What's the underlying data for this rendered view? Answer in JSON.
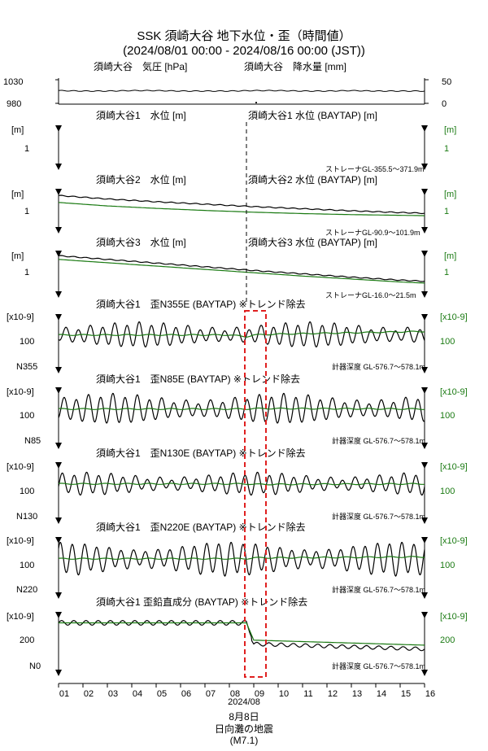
{
  "title": "SSK 須崎大谷 地下水位・歪（時間値）",
  "subtitle": "(2024/08/01 00:00 - 2024/08/16 00:00 (JST))",
  "xaxis": {
    "ticks": [
      "01",
      "02",
      "03",
      "04",
      "05",
      "06",
      "07",
      "08",
      "09",
      "10",
      "11",
      "12",
      "13",
      "14",
      "15",
      "16"
    ],
    "month_label": "2024/08"
  },
  "event": {
    "date_label": "8月8日",
    "name": "日向灘の地震",
    "magnitude": "(M7.1)",
    "day": 8.7
  },
  "colors": {
    "black": "#000000",
    "green": "#1a7a12",
    "red": "#e02020"
  },
  "chart_data": [
    {
      "id": "pressure_rain",
      "type": "line",
      "left_title": "須崎大谷　気圧 [hPa]",
      "right_title": "須崎大谷　降水量 [mm]",
      "left_ticks": [
        "1030",
        "980"
      ],
      "right_ticks": [
        "50",
        "0"
      ],
      "ylim_left": [
        980,
        1030
      ],
      "ylim_right": [
        0,
        50
      ],
      "pressure_hPa": {
        "x": [
          1,
          2,
          3,
          4,
          5,
          6,
          7,
          8,
          9,
          10,
          11,
          12,
          13,
          14,
          15,
          16
        ],
        "y": [
          1007,
          1006,
          1006,
          1007,
          1007,
          1006,
          1006,
          1006,
          1007,
          1007,
          1006,
          1006,
          1007,
          1006,
          1006,
          1006
        ]
      },
      "rain_mm": {
        "x": [
          9.1
        ],
        "y": [
          3
        ]
      }
    },
    {
      "id": "wl1",
      "type": "line",
      "left_title": "須崎大谷1　水位 [m]",
      "right_title": "須崎大谷1 水位 (BAYTAP) [m]",
      "left_unit": "[m]",
      "right_unit": "[m]",
      "left_tick": "1",
      "right_tick": "1",
      "note": "ストレーナGL-355.5～371.9m",
      "black": {
        "x": [],
        "y": []
      },
      "green": {
        "x": [],
        "y": []
      }
    },
    {
      "id": "wl2",
      "type": "line",
      "left_title": "須崎大谷2　水位 [m]",
      "right_title": "須崎大谷2 水位 (BAYTAP) [m]",
      "left_unit": "[m]",
      "right_unit": "[m]",
      "left_tick": "1",
      "right_tick": "1",
      "note": "ストレーナGL-90.9～101.9m",
      "ylim": [
        0.5,
        1.6
      ],
      "black": {
        "x": [
          1,
          3,
          5,
          7,
          9,
          11,
          13,
          15,
          16
        ],
        "y": [
          1.5,
          1.4,
          1.32,
          1.25,
          1.18,
          1.12,
          1.06,
          1.01,
          0.99
        ]
      },
      "green": {
        "x": [
          1,
          3,
          5,
          7,
          9,
          11,
          13,
          15,
          16
        ],
        "y": [
          1.3,
          1.2,
          1.13,
          1.07,
          1.02,
          0.98,
          0.95,
          0.93,
          0.92
        ]
      }
    },
    {
      "id": "wl3",
      "type": "line",
      "left_title": "須崎大谷3　水位 [m]",
      "right_title": "須崎大谷3 水位 (BAYTAP) [m]",
      "left_unit": "[m]",
      "right_unit": "[m]",
      "left_tick": "1",
      "right_tick": "1",
      "note": "ストレーナGL-16.0～21.5m",
      "ylim": [
        0.5,
        1.6
      ],
      "black": {
        "x": [
          1,
          3,
          5,
          7,
          9,
          11,
          13,
          15,
          16
        ],
        "y": [
          1.55,
          1.45,
          1.35,
          1.25,
          1.15,
          1.06,
          0.97,
          0.89,
          0.86
        ]
      },
      "green": {
        "x": [
          1,
          3,
          5,
          7,
          9,
          11,
          13,
          15,
          16
        ],
        "y": [
          1.45,
          1.36,
          1.27,
          1.18,
          1.09,
          1.0,
          0.92,
          0.84,
          0.81
        ]
      }
    },
    {
      "id": "s355",
      "type": "line",
      "title": "須崎大谷1　歪N355E (BAYTAP) ※トレンド除去",
      "left_unit": "[x10-9]",
      "right_unit": "[x10-9]",
      "left_tick": "100",
      "right_tick": "100",
      "component": "N355",
      "note": "計器深度 GL-576.7～578.1m",
      "ylim": [
        -300,
        300
      ],
      "black_amplitude": 130,
      "black_period_days": 0.5,
      "green": {
        "x": [
          1,
          8,
          8.7,
          9,
          10,
          16
        ],
        "y": [
          100,
          100,
          80,
          100,
          110,
          140
        ]
      }
    },
    {
      "id": "s85",
      "type": "line",
      "title": "須崎大谷1　歪N85E (BAYTAP) ※トレンド除去",
      "left_unit": "[x10-9]",
      "right_unit": "[x10-9]",
      "left_tick": "100",
      "right_tick": "100",
      "component": "N85",
      "note": "計器深度 GL-576.7～578.1m",
      "ylim": [
        -300,
        300
      ],
      "black_amplitude": 150,
      "black_period_days": 0.5,
      "green": {
        "x": [
          1,
          8,
          8.7,
          9,
          10,
          16
        ],
        "y": [
          100,
          100,
          100,
          105,
          105,
          100
        ]
      }
    },
    {
      "id": "s130",
      "type": "line",
      "title": "須崎大谷1　歪N130E (BAYTAP) ※トレンド除去",
      "left_unit": "[x10-9]",
      "right_unit": "[x10-9]",
      "left_tick": "100",
      "right_tick": "100",
      "component": "N130",
      "note": "計器深度 GL-576.7～578.1m",
      "ylim": [
        -300,
        300
      ],
      "black_amplitude": 110,
      "black_period_days": 0.5,
      "green": {
        "x": [
          1,
          8,
          8.7,
          9,
          10,
          16
        ],
        "y": [
          100,
          100,
          100,
          95,
          95,
          100
        ]
      }
    },
    {
      "id": "s220",
      "type": "line",
      "title": "須崎大谷1　歪N220E (BAYTAP) ※トレンド除去",
      "left_unit": "[x10-9]",
      "right_unit": "[x10-9]",
      "left_tick": "100",
      "right_tick": "100",
      "component": "N220",
      "note": "計器深度 GL-576.7～578.1m",
      "ylim": [
        -300,
        300
      ],
      "black_amplitude": 170,
      "black_period_days": 0.5,
      "green": {
        "x": [
          1,
          8,
          8.7,
          9,
          10,
          16
        ],
        "y": [
          100,
          100,
          100,
          110,
          110,
          120
        ]
      }
    },
    {
      "id": "sv",
      "type": "line",
      "title": "須崎大谷1 歪鉛直成分 (BAYTAP) ※トレンド除去",
      "left_unit": "[x10-9]",
      "right_unit": "[x10-9]",
      "left_tick": "200",
      "right_tick": "200",
      "component": "N0",
      "note": "計器深度 GL-576.7～578.1m",
      "ylim": [
        -1000,
        500
      ],
      "black_amplitude_before": 60,
      "black_amplitude_after": 45,
      "green": {
        "x": [
          1,
          8.7,
          9.0,
          16
        ],
        "y": [
          300,
          300,
          -150,
          -280
        ]
      },
      "black_offset_after": -100
    }
  ]
}
